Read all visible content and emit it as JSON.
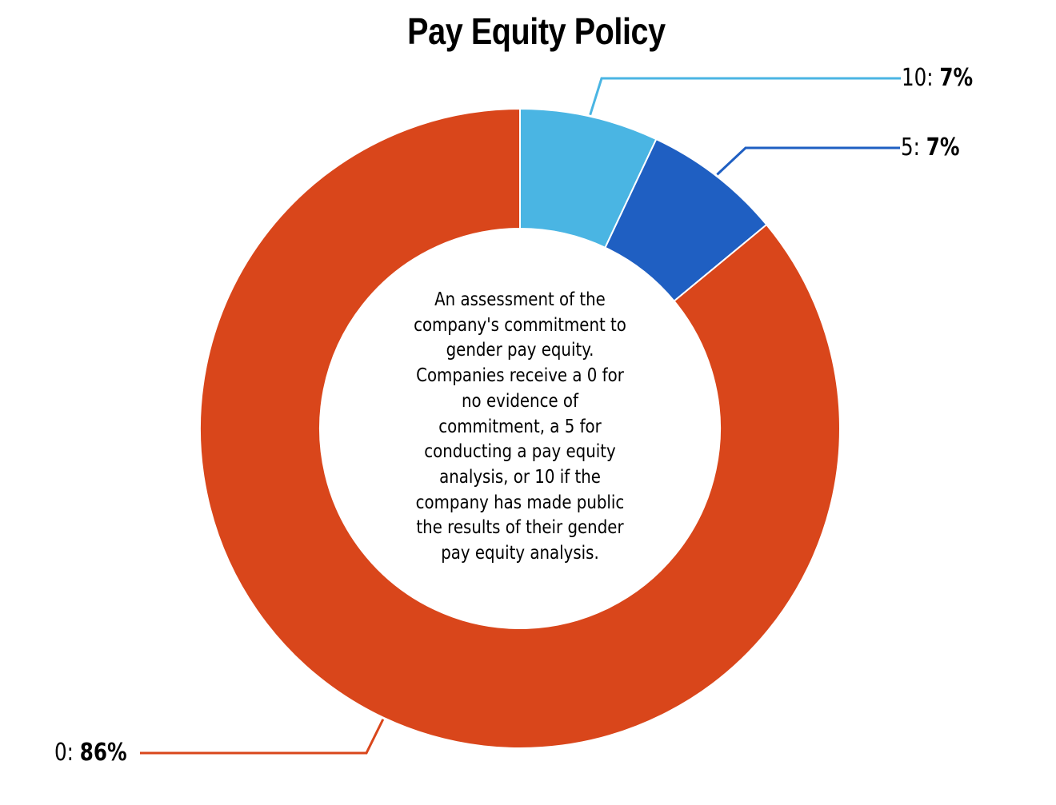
{
  "chart_data": {
    "type": "pie",
    "variant": "donut",
    "title": "Pay Equity Policy",
    "center_annotation": "An assessment of the company's commitment to gender pay equity. Companies receive a 0 for no evidence of commitment, a 5 for conducting a pay equity analysis, or 10 if the company has made public the results of their gender pay equity analysis.",
    "categories": [
      "10",
      "5",
      "0"
    ],
    "values": [
      7,
      7,
      86
    ],
    "unit": "%",
    "colors": [
      "#4AB5E3",
      "#1F5FC2",
      "#D9461B"
    ],
    "labels": [
      {
        "category": "10",
        "text": "10: ",
        "value": "7%"
      },
      {
        "category": "5",
        "text": "5: ",
        "value": "7%"
      },
      {
        "category": "0",
        "text": "0: ",
        "value": "86%"
      }
    ],
    "legend": "none (callout labels with leader lines)"
  },
  "center_lines": [
    "An assessment of the",
    "company's commitment to",
    "gender pay equity.",
    "Companies receive a 0 for",
    "no evidence of",
    "commitment, a 5 for",
    "conducting a pay equity",
    "analysis, or 10 if the",
    "company has made public",
    "the results of their gender",
    "pay equity analysis."
  ]
}
